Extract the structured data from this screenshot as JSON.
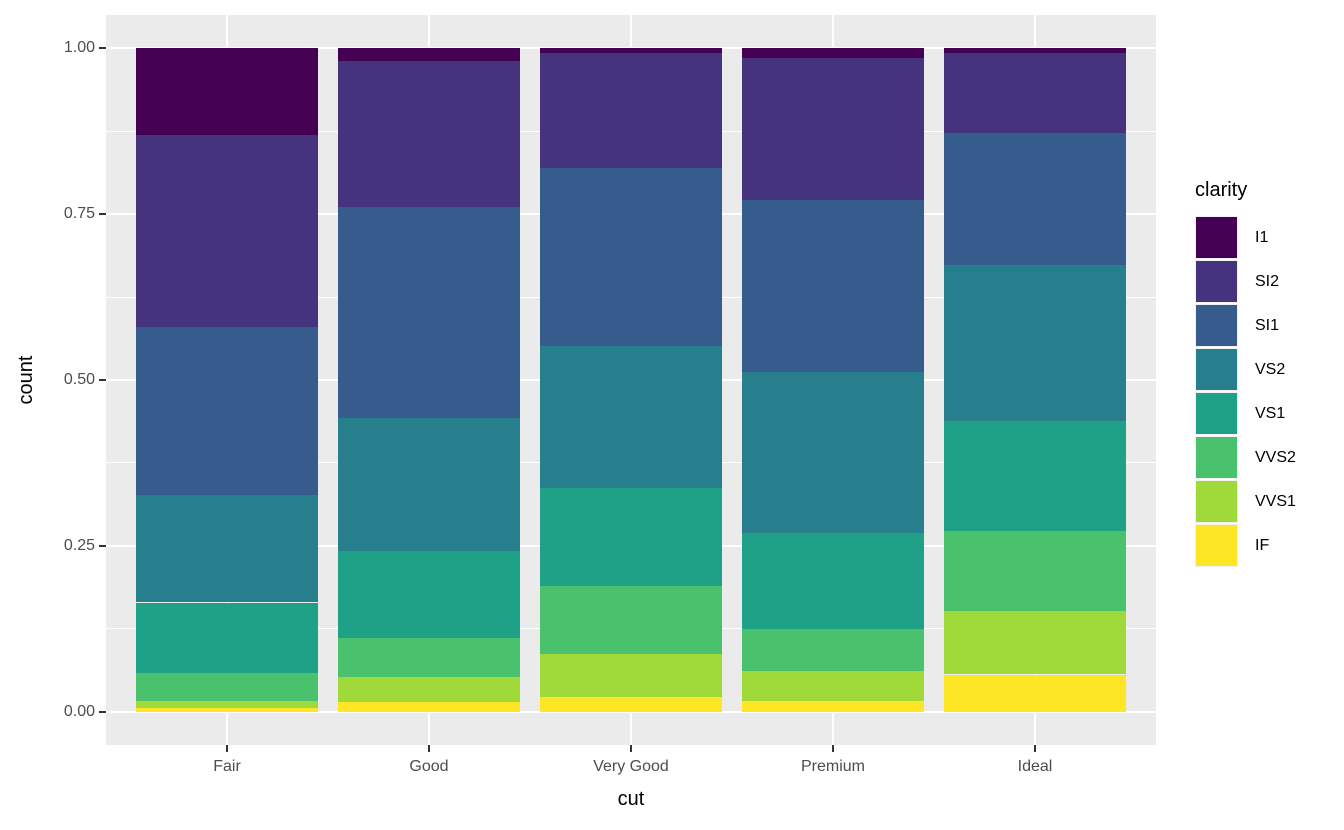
{
  "figure": {
    "background": "#FFFFFF",
    "panel_background": "#EBEBEB",
    "gridline_color": "#FFFFFF",
    "tick_mark_color": "#333333",
    "tick_label_color": "#4D4D4D",
    "title_color": "#000000"
  },
  "axes": {
    "x": {
      "title": "cut"
    },
    "y": {
      "title": "count",
      "tick_labels": [
        "1.00",
        "0.75",
        "0.50",
        "0.25",
        "0.00"
      ]
    }
  },
  "legend": {
    "title": "clarity",
    "items": [
      {
        "label": "I1",
        "color": "#440154"
      },
      {
        "label": "SI2",
        "color": "#46337E"
      },
      {
        "label": "SI1",
        "color": "#365C8D"
      },
      {
        "label": "VS2",
        "color": "#277F8E"
      },
      {
        "label": "VS1",
        "color": "#1FA187"
      },
      {
        "label": "VVS2",
        "color": "#4AC16D"
      },
      {
        "label": "VVS1",
        "color": "#9FDA3A"
      },
      {
        "label": "IF",
        "color": "#FDE725"
      }
    ]
  },
  "chart_data": {
    "type": "bar",
    "stacked": true,
    "position": "fill",
    "title": "",
    "xlabel": "cut",
    "ylabel": "count",
    "ylim": [
      0,
      1
    ],
    "grid": true,
    "legend_position": "right",
    "categories": [
      "Fair",
      "Good",
      "Very Good",
      "Premium",
      "Ideal"
    ],
    "y_ticks": [
      {
        "label": "0.00",
        "value": 0.0
      },
      {
        "label": "0.25",
        "value": 0.25
      },
      {
        "label": "0.50",
        "value": 0.5
      },
      {
        "label": "0.75",
        "value": 0.75
      },
      {
        "label": "1.00",
        "value": 1.0
      }
    ],
    "y_minor_ticks": [
      0.125,
      0.375,
      0.625,
      0.875
    ],
    "series": [
      {
        "name": "I1",
        "color": "#440154",
        "values": [
          0.1304,
          0.0196,
          0.007,
          0.0149,
          0.0068
        ]
      },
      {
        "name": "SI2",
        "color": "#46337E",
        "values": [
          0.2894,
          0.2203,
          0.1738,
          0.2138,
          0.1206
        ]
      },
      {
        "name": "SI1",
        "color": "#365C8D",
        "values": [
          0.2534,
          0.318,
          0.2682,
          0.2592,
          0.1987
        ]
      },
      {
        "name": "VS2",
        "color": "#277F8E",
        "values": [
          0.1621,
          0.1993,
          0.2144,
          0.2434,
          0.2353
        ]
      },
      {
        "name": "VS1",
        "color": "#1FA187",
        "values": [
          0.1056,
          0.1321,
          0.1469,
          0.1442,
          0.1665
        ]
      },
      {
        "name": "VVS2",
        "color": "#4AC16D",
        "values": [
          0.0429,
          0.0583,
          0.1022,
          0.0631,
          0.1209
        ]
      },
      {
        "name": "VVS1",
        "color": "#9FDA3A",
        "values": [
          0.0106,
          0.0379,
          0.0653,
          0.0447,
          0.095
        ]
      },
      {
        "name": "IF",
        "color": "#FDE725",
        "values": [
          0.0056,
          0.0145,
          0.0222,
          0.0167,
          0.0562
        ]
      }
    ]
  }
}
